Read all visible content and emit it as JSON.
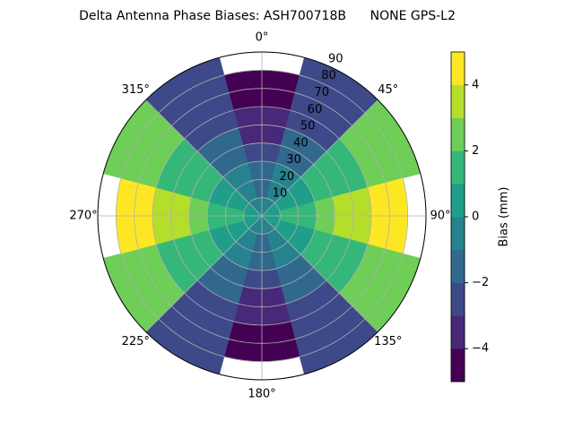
{
  "chart_data": {
    "type": "polar-contour",
    "title": "Delta Antenna Phase Biases: ASH700718B      NONE GPS-L2",
    "colorbar_label": "Bias (mm)",
    "azimuth": [
      0,
      30,
      60,
      90,
      120,
      150,
      180,
      210,
      240,
      270,
      300,
      330
    ],
    "zenith": [
      5,
      15,
      25,
      35,
      45,
      55,
      65,
      75,
      85
    ],
    "values": [
      [
        -0.4,
        -0.2,
        0.2,
        0.4,
        0.2,
        -0.2,
        -0.4,
        -0.2,
        0.2,
        0.4,
        0.2,
        -0.2
      ],
      [
        -1.1,
        -0.6,
        0.6,
        1.1,
        0.6,
        -0.6,
        -1.1,
        -0.6,
        0.6,
        1.1,
        0.6,
        -0.6
      ],
      [
        -1.8,
        -0.9,
        0.9,
        1.8,
        0.9,
        -0.9,
        -1.8,
        -0.9,
        0.9,
        1.8,
        0.9,
        -0.9
      ],
      [
        -2.5,
        -1.3,
        1.3,
        2.5,
        1.3,
        -1.3,
        -2.5,
        -1.3,
        1.3,
        2.5,
        1.3,
        -1.3
      ],
      [
        -3.2,
        -1.6,
        1.6,
        3.2,
        1.6,
        -1.6,
        -3.2,
        -1.6,
        1.6,
        3.2,
        1.6,
        -1.6
      ],
      [
        -3.9,
        -2.0,
        2.0,
        3.9,
        2.0,
        -2.0,
        -3.9,
        -2.0,
        2.0,
        3.9,
        2.0,
        -2.0
      ],
      [
        -4.5,
        -2.3,
        2.3,
        4.5,
        2.3,
        -2.3,
        -4.5,
        -2.3,
        2.3,
        4.5,
        2.3,
        -2.3
      ],
      [
        -5.0,
        -2.5,
        2.5,
        5.0,
        2.5,
        -2.5,
        -5.0,
        -2.5,
        2.5,
        5.0,
        2.5,
        -2.5
      ],
      [
        -5.4,
        -2.7,
        2.7,
        5.4,
        2.7,
        -2.7,
        -5.4,
        -2.7,
        2.7,
        5.4,
        2.7,
        -2.7
      ]
    ],
    "levels": [
      -5,
      -4,
      -3,
      -2,
      -1,
      0,
      1,
      2,
      3,
      4,
      5
    ],
    "colors": [
      "#440154",
      "#482878",
      "#3e4989",
      "#31688e",
      "#26828e",
      "#1f9e89",
      "#35b779",
      "#6ece58",
      "#b5de2b",
      "#fde725"
    ],
    "rlim": [
      0,
      90
    ],
    "rticks": [
      10,
      20,
      30,
      40,
      50,
      60,
      70,
      80,
      90
    ],
    "thetaticks": [
      {
        "value": 0,
        "label": "0°"
      },
      {
        "value": 45,
        "label": "45°"
      },
      {
        "value": 90,
        "label": "90°"
      },
      {
        "value": 135,
        "label": "135°"
      },
      {
        "value": 180,
        "label": "180°"
      },
      {
        "value": 225,
        "label": "225°"
      },
      {
        "value": 270,
        "label": "270°"
      },
      {
        "value": 315,
        "label": "315°"
      }
    ],
    "clim": [
      -5,
      5
    ],
    "cticks": [
      {
        "value": -4,
        "label": "−4"
      },
      {
        "value": -2,
        "label": "−2"
      },
      0,
      2,
      4
    ],
    "grid": true
  }
}
